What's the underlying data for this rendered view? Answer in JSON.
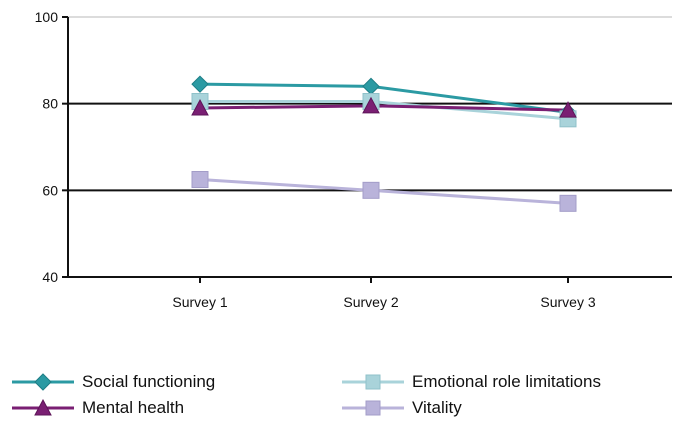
{
  "chart_data": {
    "type": "line",
    "title": "",
    "xlabel": "",
    "ylabel": "",
    "categories": [
      "Survey 1",
      "Survey 2",
      "Survey 3"
    ],
    "ylim": [
      40,
      100
    ],
    "yticks": [
      40,
      60,
      80,
      100
    ],
    "grid": "horizontal major lines at 60 and 80",
    "legend_placement": "bottom",
    "series": [
      {
        "name": "Social functioning",
        "values": [
          84.5,
          84,
          78
        ],
        "color": "#2b9aa3",
        "marker": "diamond"
      },
      {
        "name": "Emotional role limitations",
        "values": [
          80.5,
          80.5,
          76.5
        ],
        "color": "#a9d3da",
        "marker": "square"
      },
      {
        "name": "Mental health",
        "values": [
          79,
          79.5,
          78.5
        ],
        "color": "#7a1f73",
        "marker": "triangle"
      },
      {
        "name": "Vitality",
        "values": [
          62.5,
          60,
          57
        ],
        "color": "#b9b3da",
        "marker": "square"
      }
    ]
  }
}
